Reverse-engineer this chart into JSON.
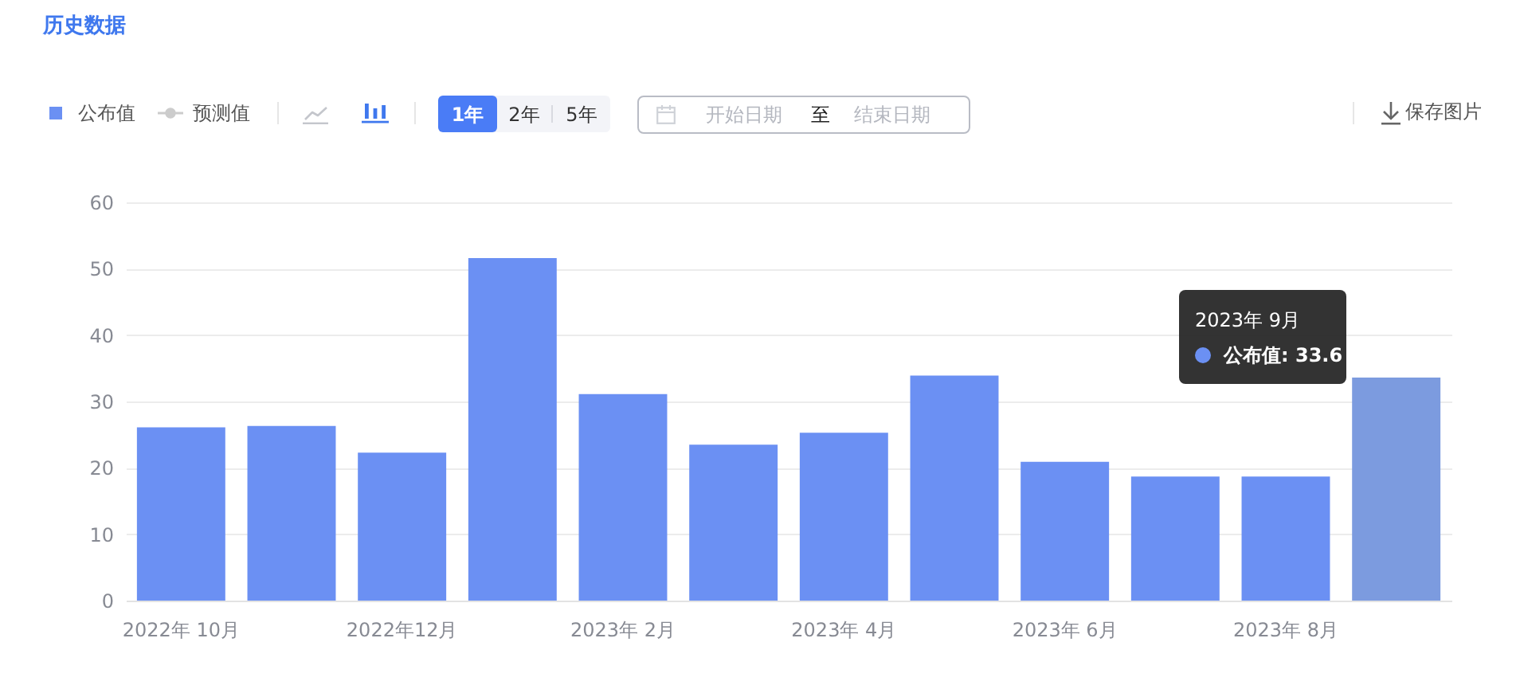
{
  "chart_data": {
    "type": "bar",
    "title": "历史数据",
    "categories": [
      "2022年 10月",
      null,
      "2022年12月",
      null,
      "2023年 2月",
      null,
      "2023年 4月",
      null,
      "2023年 6月",
      null,
      "2023年 8月",
      null
    ],
    "series": [
      {
        "name": "公布值",
        "color": "#6b90f3",
        "colors": [
          "#6b90f3",
          "#6b90f3",
          "#6b90f3",
          "#6b90f3",
          "#6b90f3",
          "#6b90f3",
          "#6b90f3",
          "#6b90f3",
          "#6b90f3",
          "#6b90f3",
          "#6b90f3",
          "#7c9bdf"
        ],
        "values": [
          26.1,
          26.3,
          22.3,
          51.6,
          31.1,
          23.5,
          25.3,
          33.9,
          20.9,
          18.7,
          18.7,
          33.6
        ]
      },
      {
        "name": "预测值",
        "type": "line",
        "color": "#cccccc",
        "marker": "circle",
        "values": [
          null,
          null,
          null,
          null,
          null,
          null,
          null,
          null,
          null,
          null,
          null,
          null
        ]
      }
    ],
    "ylim": [
      0,
      60
    ],
    "yticks": [
      0,
      10,
      20,
      30,
      40,
      50,
      60
    ],
    "grid": "y",
    "legend": "top left",
    "annotations": [
      "1年",
      "2年",
      "5年",
      "开始日期",
      "至",
      "结束日期",
      "保存图片",
      "2023年 9月",
      "公布值: 33.6"
    ]
  }
}
